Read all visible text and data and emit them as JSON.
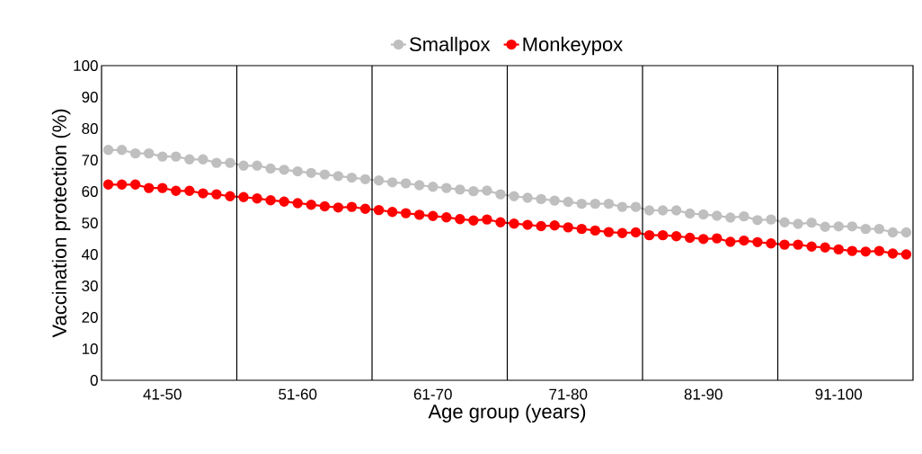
{
  "chart_data": {
    "type": "line",
    "xlabel": "Age group (years)",
    "ylabel": "Vaccination protection (%)",
    "categories": [
      null,
      null,
      null,
      null,
      "41-50",
      null,
      null,
      null,
      null,
      null,
      null,
      null,
      null,
      null,
      "51-60",
      null,
      null,
      null,
      null,
      null,
      null,
      null,
      null,
      null,
      "61-70",
      null,
      null,
      null,
      null,
      null,
      null,
      null,
      null,
      null,
      "71-80",
      null,
      null,
      null,
      null,
      null,
      null,
      null,
      null,
      null,
      "81-90",
      null,
      null,
      null,
      null,
      null,
      null,
      null,
      null,
      null,
      "91-100",
      null,
      null,
      null,
      null,
      null
    ],
    "series": [
      {
        "name": "Smallpox",
        "color": "#bfbfbf",
        "values": [
          73.2,
          73.2,
          72.1,
          72.1,
          71.1,
          71.1,
          70.2,
          70.2,
          69.1,
          69.1,
          68.2,
          68.2,
          67.3,
          66.9,
          66.4,
          65.9,
          65.4,
          64.9,
          64.4,
          63.9,
          63.5,
          62.9,
          62.6,
          62.0,
          61.5,
          61.1,
          60.6,
          60.1,
          60.3,
          59.1,
          58.5,
          58.0,
          57.6,
          57.1,
          56.7,
          56.1,
          56.1,
          56.1,
          55.1,
          55.1,
          54.0,
          54.0,
          54.0,
          53.0,
          52.7,
          52.3,
          51.7,
          52.1,
          50.9,
          51.1,
          50.2,
          49.7,
          50.1,
          48.8,
          48.9,
          48.9,
          48.1,
          48.1,
          47.0,
          47.0
        ]
      },
      {
        "name": "Monkeypox",
        "color": "#ff0000",
        "values": [
          62.2,
          62.2,
          62.2,
          61.1,
          61.1,
          60.2,
          60.2,
          59.4,
          59.1,
          58.5,
          58.2,
          57.8,
          57.2,
          56.8,
          56.3,
          55.8,
          55.3,
          54.9,
          55.1,
          54.5,
          54.1,
          53.5,
          53.1,
          52.6,
          52.2,
          51.8,
          51.2,
          50.8,
          51.1,
          50.2,
          49.8,
          49.4,
          49.0,
          49.2,
          48.6,
          48.1,
          47.6,
          47.1,
          46.8,
          47.0,
          46.1,
          46.1,
          45.8,
          45.3,
          44.9,
          45.1,
          44.0,
          44.4,
          43.9,
          43.5,
          43.1,
          43.1,
          42.5,
          42.2,
          41.6,
          41.1,
          40.9,
          41.1,
          40.3,
          40.0
        ]
      }
    ],
    "ylim": [
      0,
      100
    ],
    "yticks": [
      0,
      10,
      20,
      30,
      40,
      50,
      60,
      70,
      80,
      90,
      100
    ],
    "legend": "top",
    "marker": "circle",
    "line_style": "solid",
    "grid": false
  }
}
